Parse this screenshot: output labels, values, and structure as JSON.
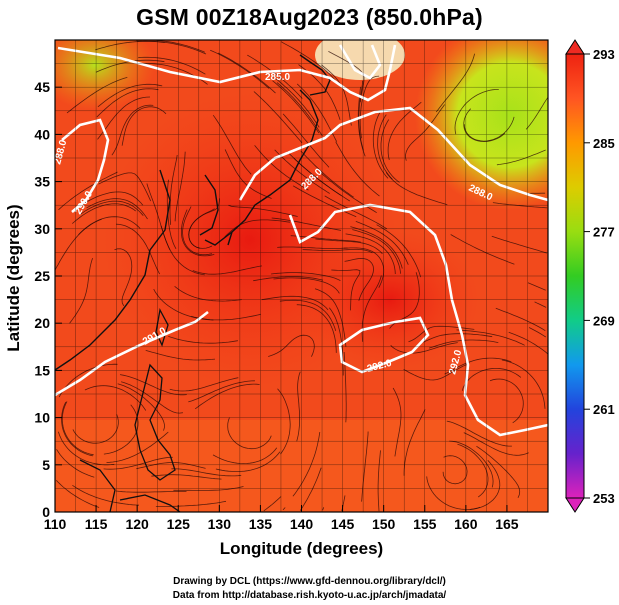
{
  "title": "GSM 00Z18Aug2023 (850.0hPa)",
  "x_axis": {
    "label": "Longitude (degrees)",
    "min": 110,
    "max": 170,
    "ticks": [
      110,
      115,
      120,
      125,
      130,
      135,
      140,
      145,
      150,
      155,
      160,
      165
    ]
  },
  "y_axis": {
    "label": "Latitude (degrees)",
    "min": 0,
    "max": 50,
    "ticks": [
      0,
      5,
      10,
      15,
      20,
      25,
      30,
      35,
      40,
      45
    ]
  },
  "colorbar": {
    "min": 253,
    "max": 293,
    "tick_labels": [
      "293",
      "285",
      "277",
      "269",
      "261",
      "253"
    ],
    "gradient": [
      "#dd22bb",
      "#6622cc",
      "#2244dd",
      "#1199ee",
      "#11cc88",
      "#33cc22",
      "#99dd11",
      "#ddcc00",
      "#ff9900",
      "#ff5522",
      "#ee2211"
    ]
  },
  "contours": [
    {
      "label": "285.0"
    },
    {
      "label": "288.0"
    },
    {
      "label": "288.0"
    },
    {
      "label": "288.0"
    },
    {
      "label": "290.0"
    },
    {
      "label": "291.0"
    },
    {
      "label": "292.0"
    },
    {
      "label": "292.0"
    }
  ],
  "credits": [
    "Drawing by DCL (https://www.gfd-dennou.org/library/dcl/)",
    "Data from http://database.rish.kyoto-u.ac.jp/arch/jmadata/"
  ]
}
